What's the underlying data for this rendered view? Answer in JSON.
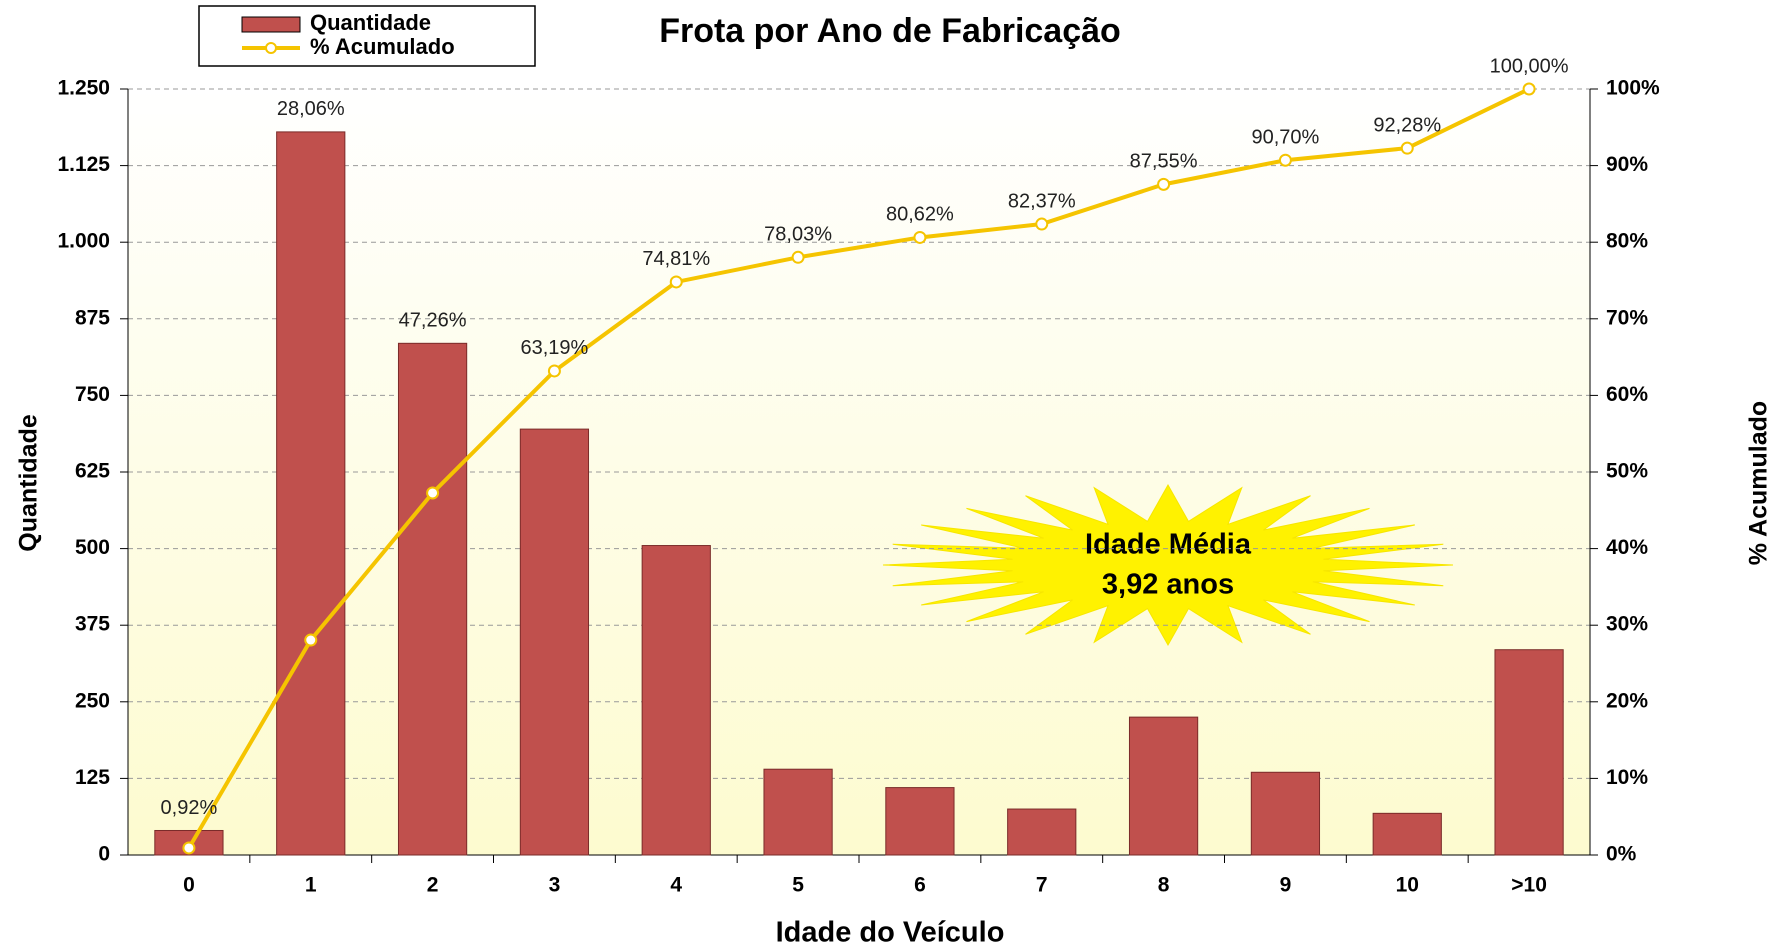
{
  "chart_data": {
    "type": "combo",
    "title": "Frota por Ano de Fabricação",
    "xlabel": "Idade do Veículo",
    "ylabel": "Quantidade",
    "y2label": "% Acumulado",
    "categories": [
      "0",
      "1",
      "2",
      "3",
      "4",
      "5",
      "6",
      "7",
      "8",
      "9",
      "10",
      ">10"
    ],
    "series": [
      {
        "name": "Quantidade",
        "type": "bar",
        "color": "#c0504d",
        "values": [
          40,
          1180,
          835,
          695,
          505,
          140,
          110,
          75,
          225,
          135,
          68,
          335
        ]
      },
      {
        "name": "% Acumulado",
        "type": "line",
        "axis": "y2",
        "color": "#f5c400",
        "values": [
          0.92,
          28.06,
          47.26,
          63.19,
          74.81,
          78.03,
          80.62,
          82.37,
          87.55,
          90.7,
          92.28,
          100
        ],
        "value_labels": [
          "0,92%",
          "28,06%",
          "47,26%",
          "63,19%",
          "74,81%",
          "78,03%",
          "80,62%",
          "82,37%",
          "87,55%",
          "90,70%",
          "92,28%",
          "100,00%"
        ]
      }
    ],
    "ylim": [
      0,
      1250
    ],
    "yticks": [
      0,
      125,
      250,
      375,
      500,
      625,
      750,
      875,
      {
        "value": 1000,
        "label": "1.000"
      },
      {
        "value": 1125,
        "label": "1.125"
      },
      {
        "value": 1250,
        "label": "1.250"
      }
    ],
    "y2lim": [
      0,
      100
    ],
    "y2ticks": [
      {
        "value": 0,
        "label": "0%"
      },
      {
        "value": 10,
        "label": "10%"
      },
      {
        "value": 20,
        "label": "20%"
      },
      {
        "value": 30,
        "label": "30%"
      },
      {
        "value": 40,
        "label": "40%"
      },
      {
        "value": 50,
        "label": "50%"
      },
      {
        "value": 60,
        "label": "60%"
      },
      {
        "value": 70,
        "label": "70%"
      },
      {
        "value": 80,
        "label": "80%"
      },
      {
        "value": 90,
        "label": "90%"
      },
      {
        "value": 100,
        "label": "100%"
      }
    ],
    "grid": true,
    "legend": "top-left",
    "annotations": [
      "Idade Média",
      "3,92 anos"
    ]
  }
}
